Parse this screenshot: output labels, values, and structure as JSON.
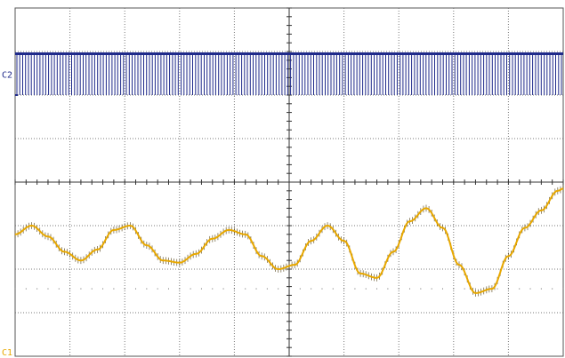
{
  "chart_data": {
    "type": "line",
    "grid": true,
    "divisions": {
      "x": 10,
      "y": 8
    },
    "xlim": [
      0,
      10
    ],
    "ylim": [
      -4,
      4
    ],
    "series": [
      {
        "channel_marker": "C2",
        "color": "#1f2a8a",
        "style": "pulse-train",
        "high_level": 2.95,
        "low_level": 2.0,
        "pulse_count": 190
      },
      {
        "channel_marker": "C1",
        "color": "#e8a800",
        "style": "line-with-ripple",
        "ripple_amplitude": 0.08,
        "x": [
          0,
          0.3,
          0.6,
          0.9,
          1.2,
          1.5,
          1.8,
          2.1,
          2.4,
          2.7,
          3.0,
          3.3,
          3.6,
          3.9,
          4.2,
          4.5,
          4.8,
          5.1,
          5.4,
          5.7,
          6.0,
          6.3,
          6.6,
          6.9,
          7.2,
          7.5,
          7.8,
          8.1,
          8.4,
          8.7,
          9.0,
          9.3,
          9.6,
          9.9,
          10.0
        ],
        "y": [
          -1.2,
          -1.0,
          -1.25,
          -1.6,
          -1.8,
          -1.55,
          -1.1,
          -1.0,
          -1.45,
          -1.8,
          -1.85,
          -1.65,
          -1.3,
          -1.1,
          -1.2,
          -1.7,
          -2.0,
          -1.9,
          -1.35,
          -1.0,
          -1.35,
          -2.1,
          -2.2,
          -1.6,
          -0.9,
          -0.6,
          -1.05,
          -1.9,
          -2.55,
          -2.45,
          -1.7,
          -1.05,
          -0.65,
          -0.2,
          -0.15
        ]
      }
    ],
    "reference_dots_y": -2.45
  }
}
